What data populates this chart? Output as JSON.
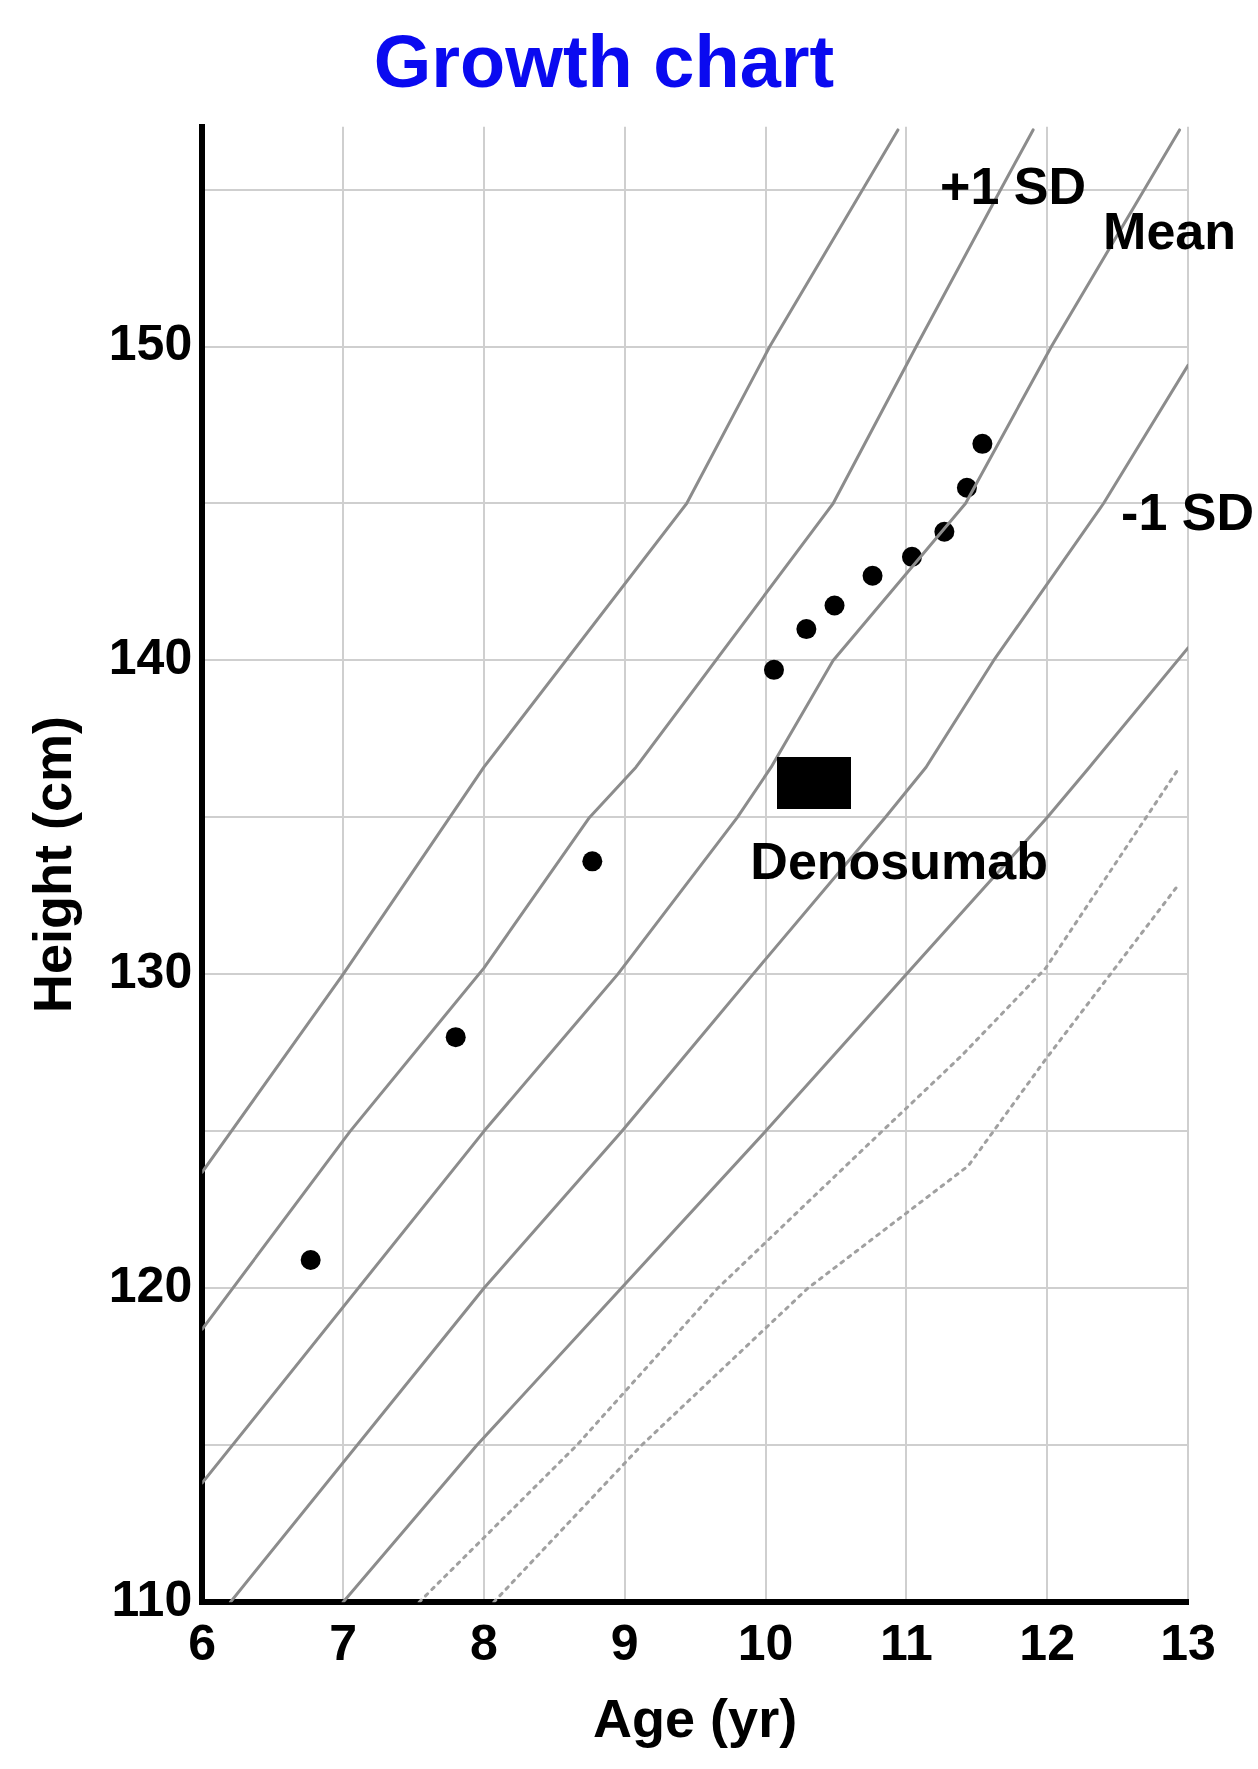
{
  "chart_data": {
    "type": "line",
    "title": "Growth chart",
    "xlabel": "Age (yr)",
    "ylabel": "Height (cm)",
    "xlim": [
      6,
      13
    ],
    "xticks": [
      6,
      7,
      8,
      9,
      10,
      11,
      12,
      13
    ],
    "ylim": [
      110,
      157
    ],
    "yticks": [
      110,
      {
        "value": 115,
        "label": null
      },
      120,
      {
        "value": 125,
        "label": null
      },
      130,
      {
        "value": 135,
        "label": null
      },
      140,
      {
        "value": 145,
        "label": null
      },
      150,
      {
        "value": 155,
        "label": null
      }
    ],
    "grid": true,
    "series": [
      {
        "type": "line",
        "color": "#8c8c8c",
        "marker": "none",
        "line_style": "solid",
        "x": [
          6,
          7,
          8,
          9.44,
          10.03,
          10.69,
          10.94
        ],
        "values": [
          123.7,
          130,
          136.6,
          145,
          150,
          155,
          156.9
        ]
      },
      {
        "type": "line",
        "name": "+1 SD",
        "color": "#8c8c8c",
        "marker": "none",
        "line_style": "solid",
        "x": [
          6,
          7.05,
          8,
          8.75,
          9.08,
          10.48,
          11.07,
          11.67,
          11.9
        ],
        "values": [
          118.7,
          125,
          130.2,
          135,
          136.6,
          145,
          150,
          155,
          156.9
        ]
      },
      {
        "type": "line",
        "name": "Mean",
        "color": "#8c8c8c",
        "marker": "none",
        "line_style": "solid",
        "x": [
          6,
          8,
          8.95,
          9.8,
          10.04,
          10.48,
          11.42,
          12.03,
          12.94
        ],
        "values": [
          113.8,
          125,
          130,
          135,
          136.6,
          140,
          145,
          150,
          156.9
        ]
      },
      {
        "type": "line",
        "name": "-1 SD",
        "color": "#8c8c8c",
        "marker": "none",
        "line_style": "solid",
        "x": [
          6.2,
          8,
          8.98,
          9.91,
          10.85,
          11.14,
          11.62,
          12.4,
          13
        ],
        "values": [
          110,
          120,
          125,
          130,
          135,
          136.6,
          140,
          145,
          149.4
        ]
      },
      {
        "type": "line",
        "color": "#8c8c8c",
        "marker": "none",
        "line_style": "solid",
        "x": [
          7,
          7.95,
          10,
          11,
          12,
          12.3,
          13
        ],
        "values": [
          110,
          115,
          125,
          130,
          135,
          136.6,
          140.4
        ]
      },
      {
        "type": "line",
        "color": "#a0a0a0",
        "marker": "none",
        "line_style": "dotted",
        "x": [
          7.54,
          8.66,
          9.66,
          10.71,
          11.39,
          11.99,
          12.94
        ],
        "values": [
          110,
          115,
          120,
          124.5,
          127.4,
          130.2,
          136.6
        ]
      },
      {
        "type": "line",
        "color": "#a0a0a0",
        "marker": "none",
        "line_style": "dotted",
        "x": [
          8.07,
          9.12,
          10.3,
          11.44,
          11.99,
          12.94
        ],
        "values": [
          110,
          115,
          120,
          123.9,
          127.3,
          132.9
        ]
      },
      {
        "type": "scatter",
        "color": "#000000",
        "marker": "circle",
        "x": [
          6.77,
          7.8,
          8.77,
          10.06,
          10.29,
          10.49,
          10.76,
          11.04,
          11.27,
          11.43,
          11.54
        ],
        "values": [
          120.9,
          128,
          133.6,
          139.7,
          141,
          141.75,
          142.7,
          143.3,
          144.1,
          145.5,
          146.9
        ]
      }
    ],
    "annotations": [
      "Denosumab"
    ]
  }
}
